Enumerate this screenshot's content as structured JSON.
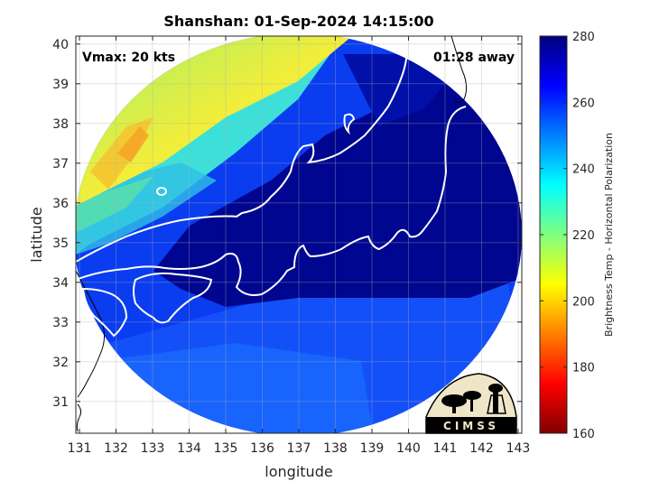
{
  "chart_data": {
    "type": "heatmap",
    "title": "Shanshan: 01-Sep-2024 14:15:00",
    "xlabel": "longitude",
    "ylabel": "latitude",
    "xlim": [
      130.9,
      143.1
    ],
    "ylim": [
      30.2,
      40.2
    ],
    "xticks": [
      131,
      132,
      133,
      134,
      135,
      136,
      137,
      138,
      139,
      140,
      141,
      142,
      143
    ],
    "yticks": [
      31,
      32,
      33,
      34,
      35,
      36,
      37,
      38,
      39,
      40
    ],
    "grid": true,
    "annotations": {
      "vmax": "Vmax: 20 kts",
      "away": "01:28 away"
    },
    "colorbar": {
      "label": "Brightness Temp - Horizontal Polarization",
      "range": [
        160,
        280
      ],
      "ticks": [
        160,
        180,
        200,
        220,
        240,
        260,
        280
      ],
      "colormap": "jet"
    },
    "logo_text": "CIMSS"
  },
  "colors": {
    "land_outline": "#ffffff",
    "coast_outside": "#000000",
    "deep_blue": "#00068f",
    "mid_blue": "#0a3cf0",
    "cyan": "#3ce0d8",
    "yellow": "#f2ee3a",
    "orange": "#f6a428"
  }
}
